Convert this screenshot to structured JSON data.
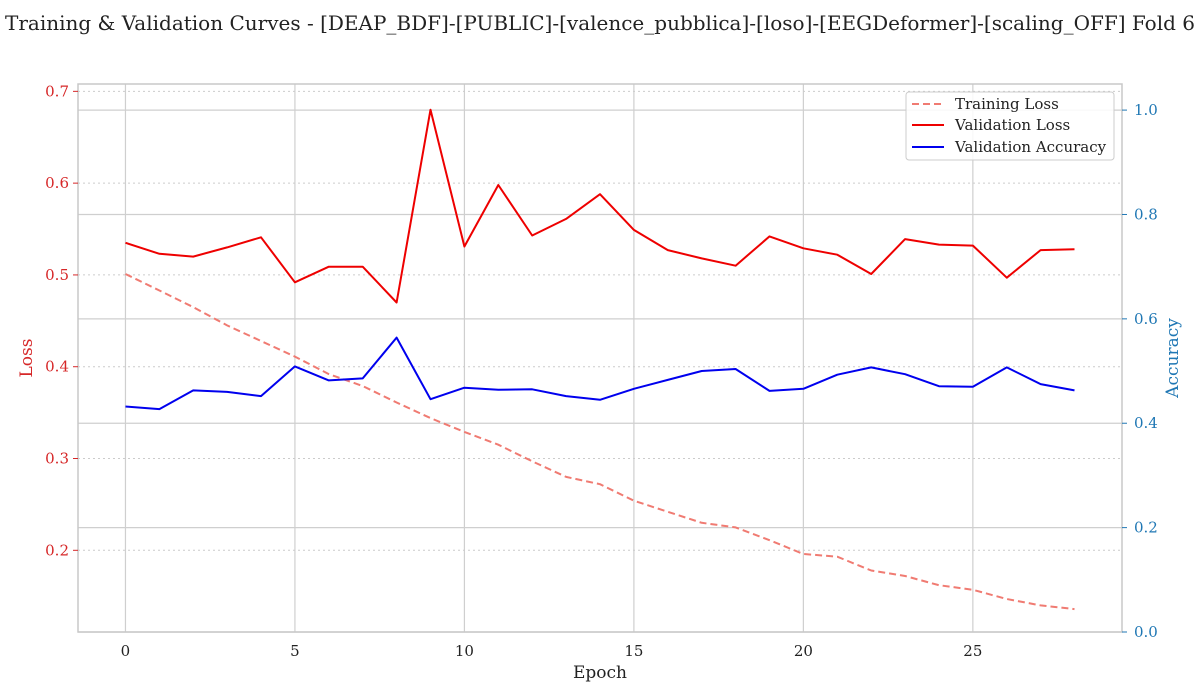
{
  "chart_data": {
    "type": "line",
    "title": "Training & Validation Curves - [DEAP_BDF]-[PUBLIC]-[valence_pubblica]-[loso]-[EEGDeformer]-[scaling_OFF] Fold 6",
    "xlabel": "Epoch",
    "ylabel_left": "Loss",
    "ylabel_right": "Accuracy",
    "xlim": [
      -1.4,
      29.4
    ],
    "ylim_left": [
      0.111,
      0.708
    ],
    "ylim_right": [
      0.0,
      1.05
    ],
    "xticks": [
      0,
      5,
      10,
      15,
      20,
      25
    ],
    "yticks_left": [
      0.2,
      0.3,
      0.4,
      0.5,
      0.6,
      0.7
    ],
    "yticks_right": [
      0.0,
      0.2,
      0.4,
      0.6,
      0.8,
      1.0
    ],
    "grid": true,
    "legend_position": "top-right",
    "colors": {
      "left_axis": "#d62728",
      "right_axis": "#1f77b4",
      "training_loss": "#f07b72",
      "validation_loss": "#ee0000",
      "validation_accuracy": "#0000ee"
    },
    "x": [
      0,
      1,
      2,
      3,
      4,
      5,
      6,
      7,
      8,
      9,
      10,
      11,
      12,
      13,
      14,
      15,
      16,
      17,
      18,
      19,
      20,
      21,
      22,
      23,
      24,
      25,
      26,
      27,
      28
    ],
    "series": [
      {
        "name": "Training Loss",
        "axis": "left",
        "style": "dashed",
        "values": [
          0.501,
          0.483,
          0.465,
          0.445,
          0.428,
          0.411,
          0.392,
          0.379,
          0.361,
          0.344,
          0.329,
          0.315,
          0.297,
          0.28,
          0.272,
          0.254,
          0.242,
          0.23,
          0.225,
          0.211,
          0.196,
          0.193,
          0.178,
          0.172,
          0.162,
          0.157,
          0.147,
          0.14,
          0.136
        ]
      },
      {
        "name": "Validation Loss",
        "axis": "left",
        "style": "solid",
        "values": [
          0.535,
          0.523,
          0.52,
          0.53,
          0.541,
          0.492,
          0.509,
          0.509,
          0.47,
          0.68,
          0.531,
          0.598,
          0.543,
          0.561,
          0.588,
          0.549,
          0.527,
          0.518,
          0.51,
          0.542,
          0.529,
          0.522,
          0.501,
          0.539,
          0.533,
          0.532,
          0.497,
          0.527,
          0.528
        ]
      },
      {
        "name": "Validation Accuracy",
        "axis": "right",
        "style": "solid",
        "values": [
          0.432,
          0.427,
          0.463,
          0.46,
          0.452,
          0.509,
          0.482,
          0.486,
          0.564,
          0.446,
          0.468,
          0.464,
          0.465,
          0.452,
          0.445,
          0.466,
          0.483,
          0.5,
          0.504,
          0.462,
          0.466,
          0.493,
          0.507,
          0.494,
          0.471,
          0.47,
          0.507,
          0.475,
          0.463
        ]
      }
    ]
  }
}
